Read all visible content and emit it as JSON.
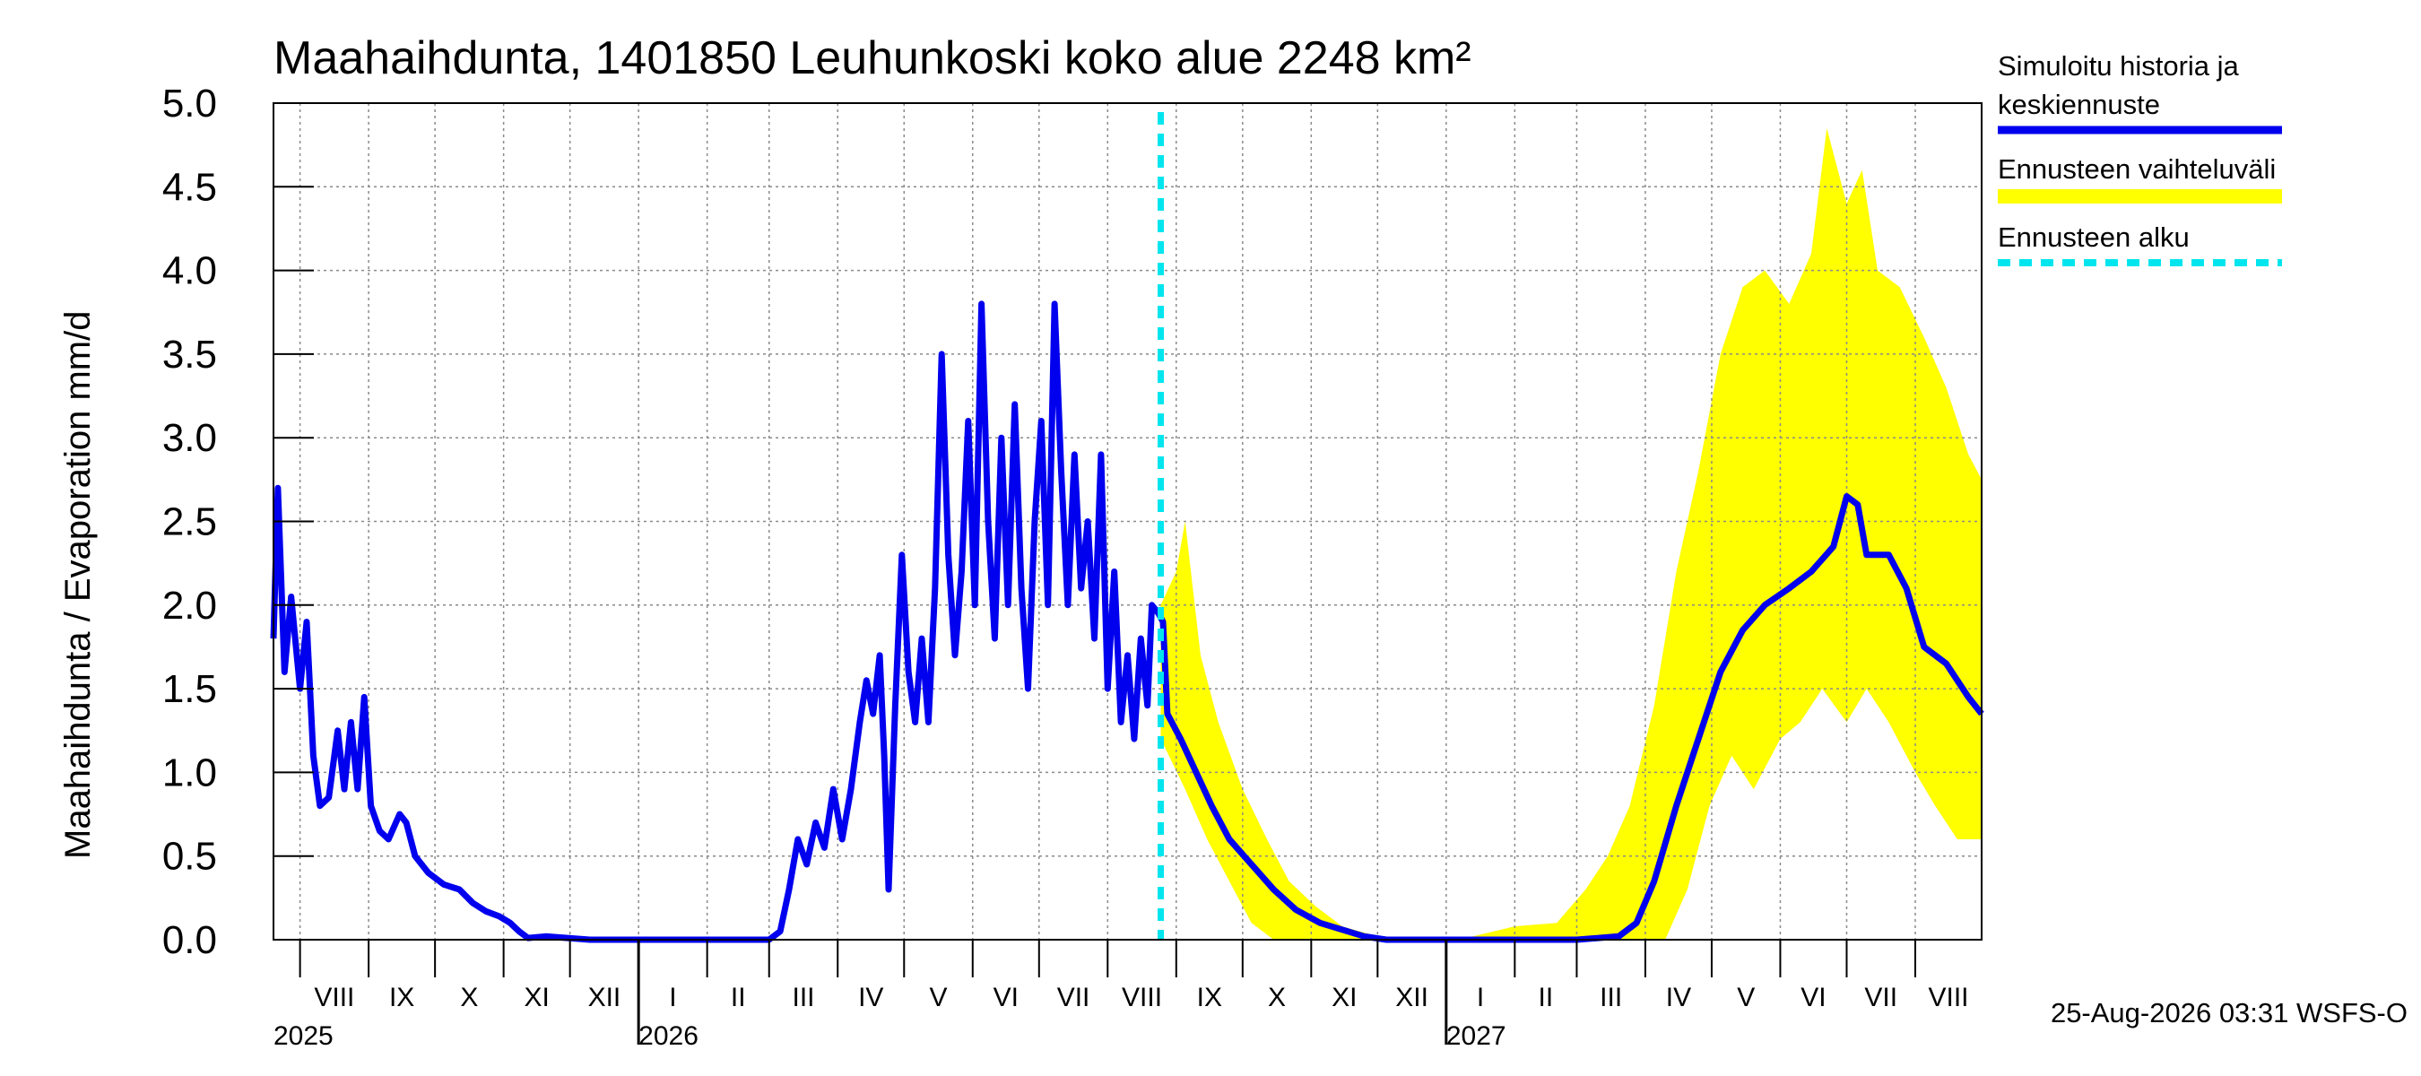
{
  "chart_data": {
    "type": "line",
    "title": "Maahaihdunta, 1401850 Leuhunkoski koko alue 2248 km²",
    "ylabel": "Maahaihdunta / Evaporation   mm/d",
    "ylim": [
      0.0,
      5.0
    ],
    "yticks": [
      "0.0",
      "0.5",
      "1.0",
      "1.5",
      "2.0",
      "2.5",
      "3.0",
      "3.5",
      "4.0",
      "4.5",
      "5.0"
    ],
    "xlim": [
      "2025-07-20",
      "2027-08-31"
    ],
    "months": [
      {
        "label": "VIII",
        "start": "2025-08-01"
      },
      {
        "label": "IX",
        "start": "2025-09-01"
      },
      {
        "label": "X",
        "start": "2025-10-01"
      },
      {
        "label": "XI",
        "start": "2025-11-01"
      },
      {
        "label": "XII",
        "start": "2025-12-01"
      },
      {
        "label": "I",
        "start": "2026-01-01"
      },
      {
        "label": "II",
        "start": "2026-02-01"
      },
      {
        "label": "III",
        "start": "2026-03-01"
      },
      {
        "label": "IV",
        "start": "2026-04-01"
      },
      {
        "label": "V",
        "start": "2026-05-01"
      },
      {
        "label": "VI",
        "start": "2026-06-01"
      },
      {
        "label": "VII",
        "start": "2026-07-01"
      },
      {
        "label": "VIII",
        "start": "2026-08-01"
      },
      {
        "label": "IX",
        "start": "2026-09-01"
      },
      {
        "label": "X",
        "start": "2026-10-01"
      },
      {
        "label": "XI",
        "start": "2026-11-01"
      },
      {
        "label": "XII",
        "start": "2026-12-01"
      },
      {
        "label": "I",
        "start": "2027-01-01"
      },
      {
        "label": "II",
        "start": "2027-02-01"
      },
      {
        "label": "III",
        "start": "2027-03-01"
      },
      {
        "label": "IV",
        "start": "2027-04-01"
      },
      {
        "label": "V",
        "start": "2027-05-01"
      },
      {
        "label": "VI",
        "start": "2027-06-01"
      },
      {
        "label": "VII",
        "start": "2027-07-01"
      },
      {
        "label": "VIII",
        "start": "2027-08-01"
      }
    ],
    "years": [
      {
        "label": "2025",
        "date": "2025-07-20"
      },
      {
        "label": "2026",
        "date": "2026-01-01"
      },
      {
        "label": "2027",
        "date": "2027-01-01"
      }
    ],
    "forecast_start": "2026-08-25",
    "series": [
      {
        "name": "Simuloitu historia ja keskiennuste",
        "color": "#0000ee",
        "points": [
          [
            "2025-07-20",
            1.8
          ],
          [
            "2025-07-22",
            2.7
          ],
          [
            "2025-07-25",
            1.6
          ],
          [
            "2025-07-28",
            2.05
          ],
          [
            "2025-08-01",
            1.5
          ],
          [
            "2025-08-04",
            1.9
          ],
          [
            "2025-08-07",
            1.1
          ],
          [
            "2025-08-10",
            0.8
          ],
          [
            "2025-08-14",
            0.85
          ],
          [
            "2025-08-18",
            1.25
          ],
          [
            "2025-08-21",
            0.9
          ],
          [
            "2025-08-24",
            1.3
          ],
          [
            "2025-08-27",
            0.9
          ],
          [
            "2025-08-30",
            1.45
          ],
          [
            "2025-09-02",
            0.8
          ],
          [
            "2025-09-06",
            0.65
          ],
          [
            "2025-09-10",
            0.6
          ],
          [
            "2025-09-15",
            0.75
          ],
          [
            "2025-09-18",
            0.7
          ],
          [
            "2025-09-22",
            0.5
          ],
          [
            "2025-09-28",
            0.4
          ],
          [
            "2025-10-05",
            0.33
          ],
          [
            "2025-10-12",
            0.3
          ],
          [
            "2025-10-18",
            0.22
          ],
          [
            "2025-10-24",
            0.17
          ],
          [
            "2025-10-30",
            0.14
          ],
          [
            "2025-11-04",
            0.1
          ],
          [
            "2025-11-08",
            0.05
          ],
          [
            "2025-11-12",
            0.01
          ],
          [
            "2025-11-20",
            0.02
          ],
          [
            "2025-11-30",
            0.01
          ],
          [
            "2025-12-10",
            0.0
          ],
          [
            "2026-01-15",
            0.0
          ],
          [
            "2026-02-20",
            0.0
          ],
          [
            "2026-03-01",
            0.0
          ],
          [
            "2026-03-06",
            0.05
          ],
          [
            "2026-03-10",
            0.3
          ],
          [
            "2026-03-14",
            0.6
          ],
          [
            "2026-03-18",
            0.45
          ],
          [
            "2026-03-22",
            0.7
          ],
          [
            "2026-03-26",
            0.55
          ],
          [
            "2026-03-30",
            0.9
          ],
          [
            "2026-04-03",
            0.6
          ],
          [
            "2026-04-07",
            0.9
          ],
          [
            "2026-04-11",
            1.3
          ],
          [
            "2026-04-14",
            1.55
          ],
          [
            "2026-04-17",
            1.35
          ],
          [
            "2026-04-20",
            1.7
          ],
          [
            "2026-04-22",
            1.1
          ],
          [
            "2026-04-24",
            0.3
          ],
          [
            "2026-04-27",
            1.4
          ],
          [
            "2026-04-30",
            2.3
          ],
          [
            "2026-05-03",
            1.6
          ],
          [
            "2026-05-06",
            1.3
          ],
          [
            "2026-05-09",
            1.8
          ],
          [
            "2026-05-12",
            1.3
          ],
          [
            "2026-05-15",
            2.1
          ],
          [
            "2026-05-18",
            3.5
          ],
          [
            "2026-05-21",
            2.3
          ],
          [
            "2026-05-24",
            1.7
          ],
          [
            "2026-05-27",
            2.2
          ],
          [
            "2026-05-30",
            3.1
          ],
          [
            "2026-06-02",
            2.0
          ],
          [
            "2026-06-05",
            3.8
          ],
          [
            "2026-06-08",
            2.5
          ],
          [
            "2026-06-11",
            1.8
          ],
          [
            "2026-06-14",
            3.0
          ],
          [
            "2026-06-17",
            2.0
          ],
          [
            "2026-06-20",
            3.2
          ],
          [
            "2026-06-23",
            2.1
          ],
          [
            "2026-06-26",
            1.5
          ],
          [
            "2026-06-29",
            2.5
          ],
          [
            "2026-07-02",
            3.1
          ],
          [
            "2026-07-05",
            2.0
          ],
          [
            "2026-07-08",
            3.8
          ],
          [
            "2026-07-11",
            2.8
          ],
          [
            "2026-07-14",
            2.0
          ],
          [
            "2026-07-17",
            2.9
          ],
          [
            "2026-07-20",
            2.1
          ],
          [
            "2026-07-23",
            2.5
          ],
          [
            "2026-07-26",
            1.8
          ],
          [
            "2026-07-29",
            2.9
          ],
          [
            "2026-08-01",
            1.5
          ],
          [
            "2026-08-04",
            2.2
          ],
          [
            "2026-08-07",
            1.3
          ],
          [
            "2026-08-10",
            1.7
          ],
          [
            "2026-08-13",
            1.2
          ],
          [
            "2026-08-16",
            1.8
          ],
          [
            "2026-08-19",
            1.4
          ],
          [
            "2026-08-21",
            2.0
          ],
          [
            "2026-08-24",
            1.95
          ],
          [
            "2026-08-26",
            1.9
          ],
          [
            "2026-08-28",
            1.35
          ],
          [
            "2026-09-03",
            1.2
          ],
          [
            "2026-09-10",
            1.0
          ],
          [
            "2026-09-17",
            0.8
          ],
          [
            "2026-09-25",
            0.6
          ],
          [
            "2026-10-05",
            0.45
          ],
          [
            "2026-10-15",
            0.3
          ],
          [
            "2026-10-25",
            0.18
          ],
          [
            "2026-11-05",
            0.1
          ],
          [
            "2026-11-15",
            0.06
          ],
          [
            "2026-11-25",
            0.02
          ],
          [
            "2026-12-05",
            0.0
          ],
          [
            "2027-01-15",
            0.0
          ],
          [
            "2027-03-01",
            0.0
          ],
          [
            "2027-03-20",
            0.02
          ],
          [
            "2027-03-28",
            0.1
          ],
          [
            "2027-04-05",
            0.35
          ],
          [
            "2027-04-15",
            0.8
          ],
          [
            "2027-04-25",
            1.2
          ],
          [
            "2027-05-05",
            1.6
          ],
          [
            "2027-05-15",
            1.85
          ],
          [
            "2027-05-25",
            2.0
          ],
          [
            "2027-06-05",
            2.1
          ],
          [
            "2027-06-15",
            2.2
          ],
          [
            "2027-06-25",
            2.35
          ],
          [
            "2027-07-01",
            2.65
          ],
          [
            "2027-07-06",
            2.6
          ],
          [
            "2027-07-10",
            2.3
          ],
          [
            "2027-07-20",
            2.3
          ],
          [
            "2027-07-28",
            2.1
          ],
          [
            "2027-08-05",
            1.75
          ],
          [
            "2027-08-15",
            1.65
          ],
          [
            "2027-08-25",
            1.45
          ],
          [
            "2027-08-31",
            1.35
          ]
        ]
      },
      {
        "name": "Ennusteen vaihteluväli",
        "type": "area",
        "color": "#ffff00",
        "upper": [
          [
            "2026-08-25",
            2.0
          ],
          [
            "2026-09-01",
            2.2
          ],
          [
            "2026-09-05",
            2.5
          ],
          [
            "2026-09-12",
            1.7
          ],
          [
            "2026-09-20",
            1.3
          ],
          [
            "2026-10-01",
            0.9
          ],
          [
            "2026-10-12",
            0.6
          ],
          [
            "2026-10-22",
            0.35
          ],
          [
            "2026-11-03",
            0.2
          ],
          [
            "2026-11-15",
            0.08
          ],
          [
            "2026-12-01",
            0.02
          ],
          [
            "2027-01-10",
            0.01
          ],
          [
            "2027-02-01",
            0.08
          ],
          [
            "2027-02-20",
            0.1
          ],
          [
            "2027-03-05",
            0.3
          ],
          [
            "2027-03-15",
            0.5
          ],
          [
            "2027-03-25",
            0.8
          ],
          [
            "2027-04-05",
            1.4
          ],
          [
            "2027-04-15",
            2.2
          ],
          [
            "2027-04-25",
            2.8
          ],
          [
            "2027-05-05",
            3.5
          ],
          [
            "2027-05-15",
            3.9
          ],
          [
            "2027-05-25",
            4.0
          ],
          [
            "2027-06-05",
            3.8
          ],
          [
            "2027-06-15",
            4.1
          ],
          [
            "2027-06-22",
            4.85
          ],
          [
            "2027-07-01",
            4.4
          ],
          [
            "2027-07-08",
            4.6
          ],
          [
            "2027-07-15",
            4.0
          ],
          [
            "2027-07-25",
            3.9
          ],
          [
            "2027-08-05",
            3.6
          ],
          [
            "2027-08-15",
            3.3
          ],
          [
            "2027-08-25",
            2.9
          ],
          [
            "2027-08-31",
            2.75
          ]
        ],
        "lower": [
          [
            "2026-08-25",
            1.2
          ],
          [
            "2026-09-05",
            0.9
          ],
          [
            "2026-09-15",
            0.6
          ],
          [
            "2026-09-25",
            0.35
          ],
          [
            "2026-10-05",
            0.1
          ],
          [
            "2026-10-15",
            0.0
          ],
          [
            "2027-04-10",
            0.0
          ],
          [
            "2027-04-20",
            0.3
          ],
          [
            "2027-04-30",
            0.8
          ],
          [
            "2027-05-10",
            1.1
          ],
          [
            "2027-05-20",
            0.9
          ],
          [
            "2027-06-01",
            1.2
          ],
          [
            "2027-06-10",
            1.3
          ],
          [
            "2027-06-20",
            1.5
          ],
          [
            "2027-07-01",
            1.3
          ],
          [
            "2027-07-10",
            1.5
          ],
          [
            "2027-07-20",
            1.3
          ],
          [
            "2027-08-01",
            1.0
          ],
          [
            "2027-08-10",
            0.8
          ],
          [
            "2027-08-20",
            0.6
          ],
          [
            "2027-08-31",
            0.6
          ]
        ]
      }
    ],
    "legend": {
      "position": "right",
      "entries": [
        {
          "label_lines": [
            "Simuloitu historia ja",
            "keskiennuste"
          ],
          "color": "#0000ee",
          "style": "solid"
        },
        {
          "label_lines": [
            "Ennusteen vaihteluväli"
          ],
          "color": "#ffff00",
          "style": "band"
        },
        {
          "label_lines": [
            "Ennusteen alku"
          ],
          "color": "#00e5ee",
          "style": "dashed"
        }
      ]
    },
    "grid": true,
    "footer": "25-Aug-2026 03:31 WSFS-O"
  }
}
